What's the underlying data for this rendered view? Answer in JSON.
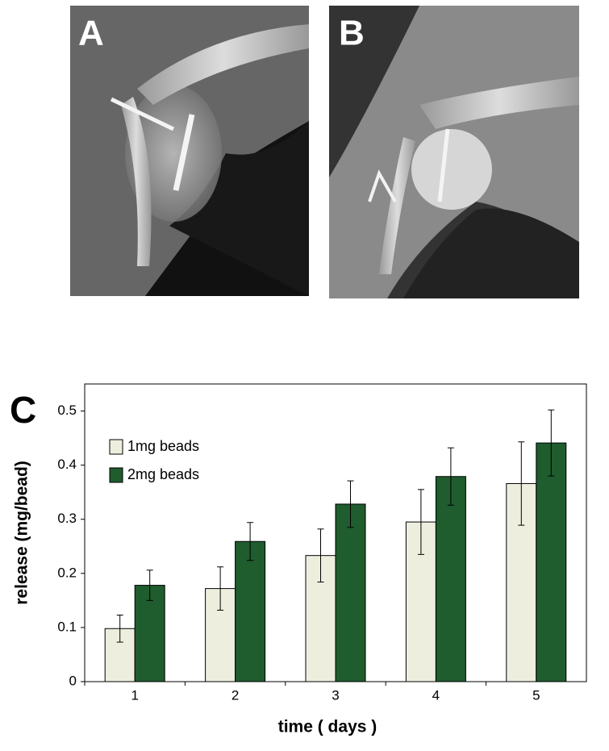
{
  "panels": [
    {
      "label": "A"
    },
    {
      "label": "B"
    }
  ],
  "chart_data": {
    "type": "bar",
    "panel_label": "C",
    "x_label": "time ( days )",
    "y_label": "release (mg/bead)",
    "categories": [
      "1",
      "2",
      "3",
      "4",
      "5"
    ],
    "series": [
      {
        "name": "1mg beads",
        "color": "#eeeedf",
        "values": [
          0.098,
          0.172,
          0.233,
          0.295,
          0.366
        ],
        "errors": [
          0.025,
          0.04,
          0.049,
          0.06,
          0.077
        ]
      },
      {
        "name": "2mg beads",
        "color": "#1f5c2e",
        "values": [
          0.178,
          0.259,
          0.328,
          0.379,
          0.441
        ],
        "errors": [
          0.028,
          0.035,
          0.043,
          0.053,
          0.061
        ]
      }
    ],
    "ylim": [
      0,
      0.55
    ],
    "yticks": [
      0,
      0.1,
      0.2,
      0.3,
      0.4,
      0.5
    ],
    "grid": false,
    "legend": "upper left"
  }
}
